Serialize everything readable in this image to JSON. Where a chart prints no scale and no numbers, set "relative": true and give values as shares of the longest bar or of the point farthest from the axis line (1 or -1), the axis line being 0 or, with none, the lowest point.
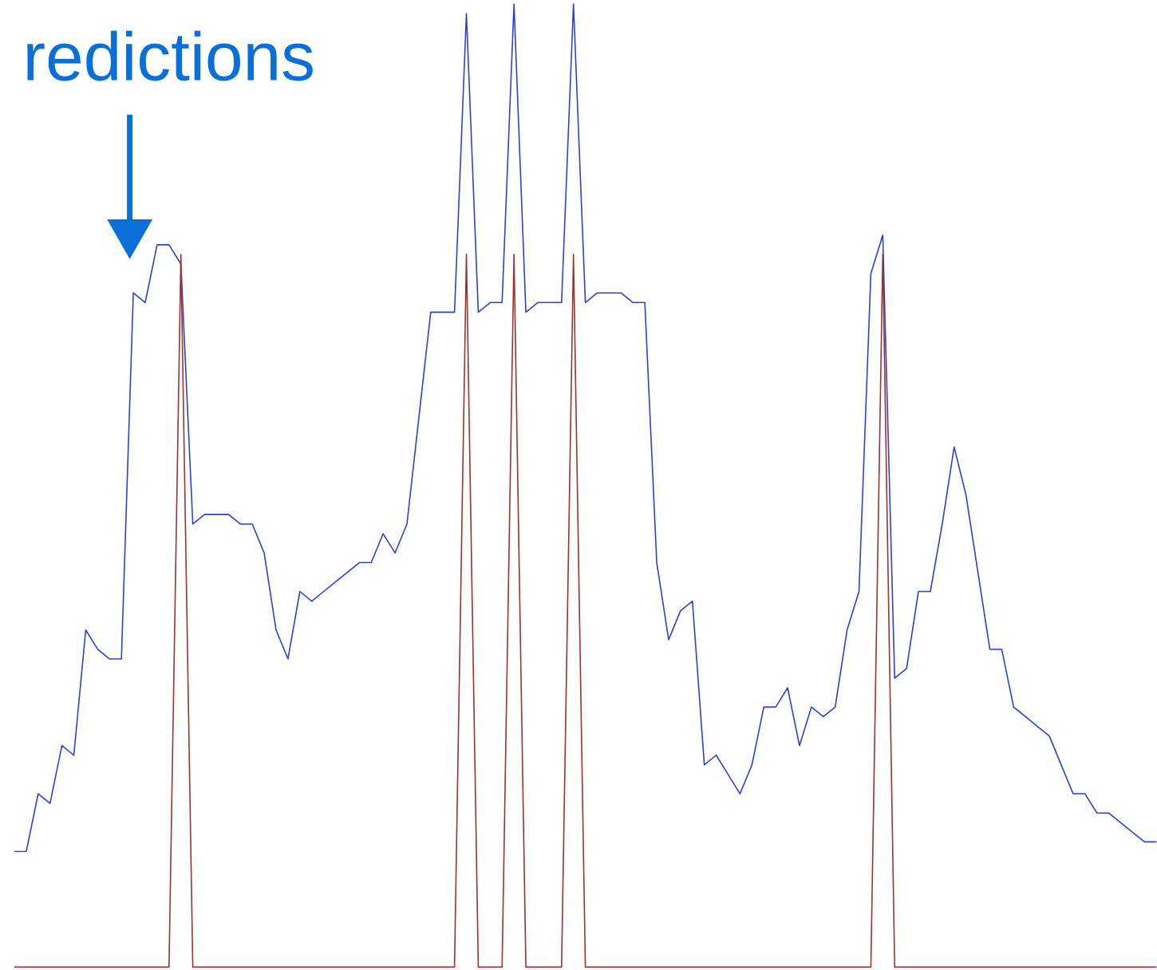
{
  "chart_data": {
    "type": "line",
    "relative": true,
    "annotations": [
      "redictions"
    ],
    "categories": [
      null,
      null,
      null,
      null,
      null,
      null,
      null,
      null,
      null,
      null,
      null,
      null,
      null,
      null,
      null,
      null,
      null,
      null,
      null,
      null,
      null,
      null,
      null,
      null,
      null,
      null,
      null,
      null,
      null,
      null,
      null,
      null,
      null,
      null,
      null,
      null,
      null,
      null,
      null,
      null,
      null,
      null,
      null,
      null,
      null,
      null,
      null,
      null,
      null,
      null,
      null,
      null,
      null,
      null,
      null,
      null,
      null,
      null,
      null,
      null,
      null,
      null,
      null,
      null,
      null,
      null,
      null,
      null,
      null,
      null,
      null,
      null,
      null,
      null,
      null,
      null,
      null,
      null,
      null,
      null,
      null,
      null,
      null,
      null,
      null,
      null,
      null,
      null,
      null,
      null,
      null,
      null,
      null,
      null,
      null,
      null,
      null
    ],
    "series": [
      {
        "color": "#2b3fe0",
        "values": [
          0.12,
          0.12,
          0.18,
          0.17,
          0.23,
          0.22,
          0.35,
          0.33,
          0.32,
          0.32,
          0.7,
          0.69,
          0.75,
          0.75,
          0.73,
          0.46,
          0.47,
          0.47,
          0.47,
          0.46,
          0.46,
          0.43,
          0.35,
          0.32,
          0.39,
          0.38,
          0.39,
          0.4,
          0.41,
          0.42,
          0.42,
          0.45,
          0.43,
          0.46,
          0.57,
          0.68,
          0.68,
          0.68,
          0.99,
          0.68,
          0.69,
          0.69,
          1.0,
          0.68,
          0.69,
          0.69,
          0.69,
          1.0,
          0.69,
          0.7,
          0.7,
          0.7,
          0.69,
          0.69,
          0.42,
          0.34,
          0.37,
          0.38,
          0.21,
          0.22,
          0.2,
          0.18,
          0.21,
          0.27,
          0.27,
          0.29,
          0.23,
          0.27,
          0.26,
          0.27,
          0.35,
          0.39,
          0.72,
          0.76,
          0.3,
          0.31,
          0.39,
          0.39,
          0.46,
          0.54,
          0.49,
          0.41,
          0.33,
          0.33,
          0.27,
          0.26,
          0.25,
          0.24,
          0.21,
          0.18,
          0.18,
          0.16,
          0.16,
          0.15,
          0.14,
          0.13,
          0.13
        ]
      },
      {
        "color": "#a0302a",
        "values": [
          0,
          0,
          0,
          0,
          0,
          0,
          0,
          0,
          0,
          0,
          0,
          0,
          0,
          0,
          0.74,
          0,
          0,
          0,
          0,
          0,
          0,
          0,
          0,
          0,
          0,
          0,
          0,
          0,
          0,
          0,
          0,
          0,
          0,
          0,
          0,
          0,
          0,
          0,
          0.74,
          0,
          0,
          0,
          0.74,
          0,
          0,
          0,
          0,
          0.74,
          0,
          0,
          0,
          0,
          0,
          0,
          0,
          0,
          0,
          0,
          0,
          0,
          0,
          0,
          0,
          0,
          0,
          0,
          0,
          0,
          0,
          0,
          0,
          0,
          0,
          0.74,
          0,
          0,
          0,
          0,
          0,
          0,
          0,
          0,
          0,
          0,
          0,
          0,
          0,
          0,
          0,
          0,
          0,
          0,
          0,
          0,
          0,
          0,
          0
        ]
      }
    ]
  }
}
